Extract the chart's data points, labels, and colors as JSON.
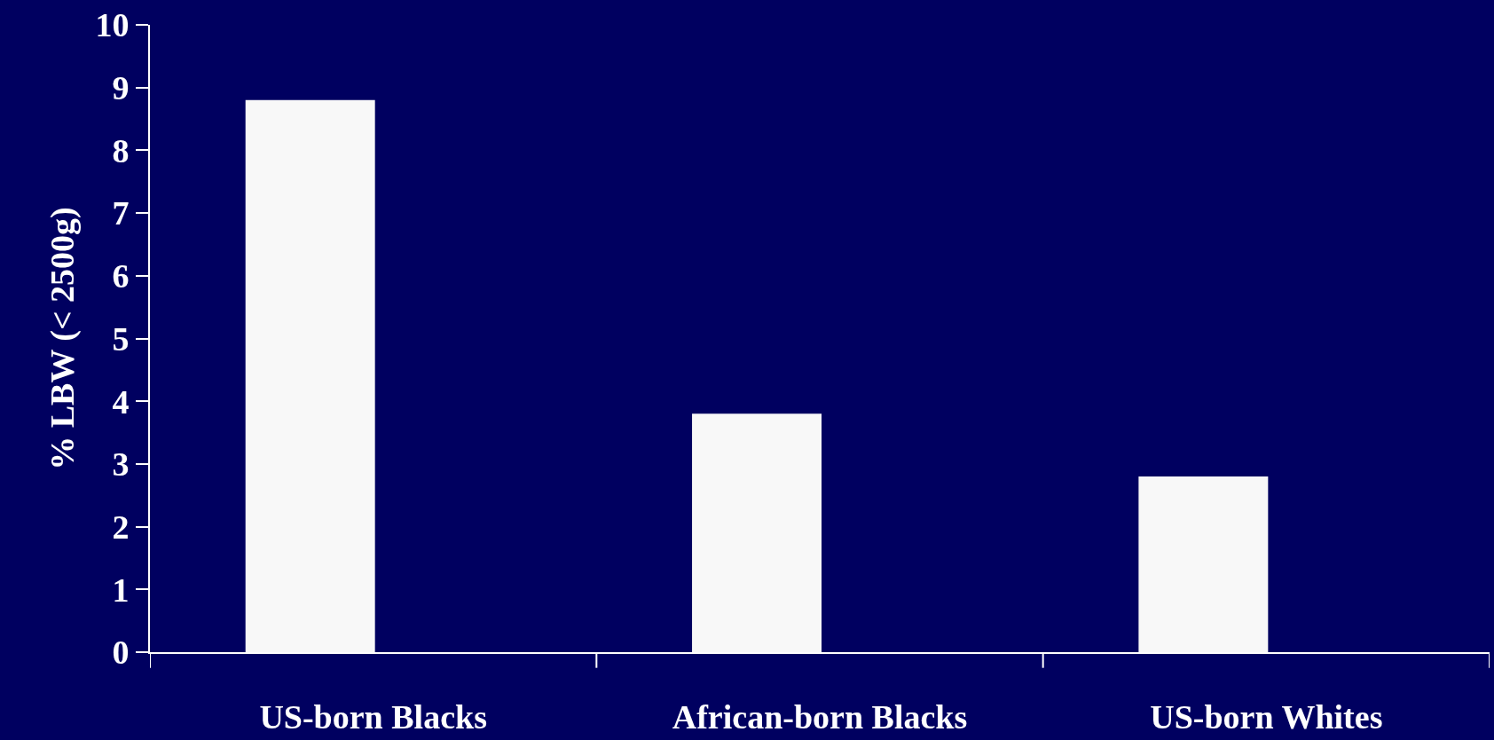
{
  "chart_data": {
    "type": "bar",
    "ylabel": "% LBW (< 2500g)",
    "categories": [
      "US-born Blacks",
      "African-born Blacks",
      "US-born Whites"
    ],
    "values": [
      8.8,
      3.8,
      2.8
    ],
    "color": "#f8f8f8",
    "ylim": [
      0,
      10
    ],
    "yticks": [
      0,
      1,
      2,
      3,
      4,
      5,
      6,
      7,
      8,
      9,
      10
    ],
    "grid": false
  }
}
